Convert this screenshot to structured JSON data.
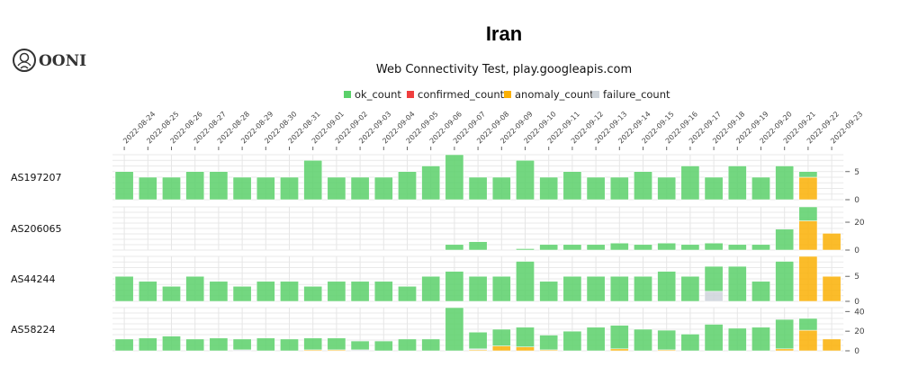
{
  "logo": {
    "text": "OONI"
  },
  "chart_data": {
    "type": "bar",
    "stacked": true,
    "title": "Iran",
    "subtitle": "Web Connectivity Test, play.googleapis.com",
    "legend": {
      "placement": "top",
      "entries": [
        {
          "key": "ok",
          "label": "ok_count",
          "color": "#5ad06a"
        },
        {
          "key": "confirmed",
          "label": "confirmed_count",
          "color": "#f03e3e"
        },
        {
          "key": "anomaly",
          "label": "anomaly_count",
          "color": "#fab005"
        },
        {
          "key": "failure",
          "label": "failure_count",
          "color": "#ced4da"
        }
      ]
    },
    "categories": [
      "2022-08-24",
      "2022-08-25",
      "2022-08-26",
      "2022-08-27",
      "2022-08-28",
      "2022-08-29",
      "2022-08-30",
      "2022-08-31",
      "2022-09-01",
      "2022-09-02",
      "2022-09-03",
      "2022-09-04",
      "2022-09-05",
      "2022-09-06",
      "2022-09-07",
      "2022-09-08",
      "2022-09-09",
      "2022-09-10",
      "2022-09-11",
      "2022-09-12",
      "2022-09-13",
      "2022-09-14",
      "2022-09-15",
      "2022-09-16",
      "2022-09-17",
      "2022-09-18",
      "2022-09-19",
      "2022-09-20",
      "2022-09-21",
      "2022-09-22",
      "2022-09-23"
    ],
    "grid": true,
    "panels": [
      {
        "label": "AS197207",
        "ylim": [
          0,
          8
        ],
        "yticks": [
          0,
          5
        ],
        "ok": [
          5,
          4,
          4,
          5,
          5,
          4,
          4,
          4,
          7,
          4,
          4,
          4,
          5,
          6,
          8,
          4,
          4,
          7,
          4,
          5,
          4,
          4,
          5,
          4,
          6,
          4,
          6,
          4,
          6,
          1,
          0
        ],
        "anomaly": [
          0,
          0,
          0,
          0,
          0,
          0,
          0,
          0,
          0,
          0,
          0,
          0,
          0,
          0,
          0,
          0,
          0,
          0,
          0,
          0,
          0,
          0,
          0,
          0,
          0,
          0,
          0,
          0,
          0,
          4,
          0
        ],
        "failure": [
          0,
          0,
          0,
          0,
          0,
          0,
          0,
          0,
          0,
          0,
          0,
          0,
          0,
          0,
          0,
          0,
          0,
          0,
          0,
          0,
          0,
          0,
          0,
          0,
          0,
          0,
          0,
          0,
          0,
          0,
          0
        ],
        "confirmed": [
          0,
          0,
          0,
          0,
          0,
          0,
          0,
          0,
          0,
          0,
          0,
          0,
          0,
          0,
          0,
          0,
          0,
          0,
          0,
          0,
          0,
          0,
          0,
          0,
          0,
          0,
          0,
          0,
          0,
          0,
          0
        ]
      },
      {
        "label": "AS206065",
        "ylim": [
          0,
          31
        ],
        "yticks": [
          0,
          20
        ],
        "ok": [
          0,
          0,
          0,
          0,
          0,
          0,
          0,
          0,
          0,
          0,
          0,
          0,
          0,
          0,
          4,
          6,
          0,
          1,
          4,
          4,
          4,
          5,
          4,
          5,
          4,
          5,
          4,
          4,
          15,
          10,
          0
        ],
        "anomaly": [
          0,
          0,
          0,
          0,
          0,
          0,
          0,
          0,
          0,
          0,
          0,
          0,
          0,
          0,
          0,
          0,
          0,
          0,
          0,
          0,
          0,
          0,
          0,
          0,
          0,
          0,
          0,
          0,
          0,
          21,
          12
        ],
        "failure": [
          0,
          0,
          0,
          0,
          0,
          0,
          0,
          0,
          0,
          0,
          0,
          0,
          0,
          0,
          0,
          0,
          0,
          0,
          0,
          0,
          0,
          0,
          0,
          0,
          0,
          0,
          0,
          0,
          0,
          0,
          0
        ],
        "confirmed": [
          0,
          0,
          0,
          0,
          0,
          0,
          0,
          0,
          0,
          0,
          0,
          0,
          0,
          0,
          0,
          0,
          0,
          0,
          0,
          0,
          0,
          0,
          0,
          0,
          0,
          0,
          0,
          0,
          0,
          0,
          0
        ]
      },
      {
        "label": "AS44244",
        "ylim": [
          0,
          9
        ],
        "yticks": [
          0,
          5
        ],
        "ok": [
          5,
          4,
          3,
          5,
          4,
          3,
          4,
          4,
          3,
          4,
          4,
          4,
          3,
          5,
          6,
          5,
          5,
          8,
          4,
          5,
          5,
          5,
          5,
          6,
          5,
          5,
          7,
          4,
          8,
          0,
          0
        ],
        "anomaly": [
          0,
          0,
          0,
          0,
          0,
          0,
          0,
          0,
          0,
          0,
          0,
          0,
          0,
          0,
          0,
          0,
          0,
          0,
          0,
          0,
          0,
          0,
          0,
          0,
          0,
          0,
          0,
          0,
          0,
          9,
          5
        ],
        "failure": [
          0,
          0,
          0,
          0,
          0,
          0,
          0,
          0,
          0,
          0,
          0,
          0,
          0,
          0,
          0,
          0,
          0,
          0,
          0,
          0,
          0,
          0,
          0,
          0,
          0,
          2,
          0,
          0,
          0,
          0,
          0
        ],
        "confirmed": [
          0,
          0,
          0,
          0,
          0,
          0,
          0,
          0,
          0,
          0,
          0,
          0,
          0,
          0,
          0,
          0,
          0,
          0,
          0,
          0,
          0,
          0,
          0,
          0,
          0,
          0,
          0,
          0,
          0,
          0,
          0
        ]
      },
      {
        "label": "AS58224",
        "ylim": [
          0,
          44
        ],
        "yticks": [
          0,
          20,
          40
        ],
        "ok": [
          12,
          13,
          15,
          12,
          13,
          11,
          13,
          12,
          12,
          12,
          9,
          10,
          12,
          12,
          44,
          17,
          17,
          20,
          15,
          20,
          24,
          24,
          22,
          20,
          17,
          27,
          23,
          24,
          30,
          12,
          0
        ],
        "anomaly": [
          0,
          0,
          0,
          0,
          0,
          0,
          0,
          0,
          1,
          1,
          0,
          0,
          0,
          0,
          0,
          1,
          5,
          4,
          1,
          0,
          0,
          2,
          0,
          1,
          0,
          0,
          0,
          0,
          2,
          21,
          12
        ],
        "failure": [
          0,
          0,
          0,
          0,
          0,
          1,
          0,
          0,
          0,
          0,
          1,
          0,
          0,
          0,
          0,
          1,
          0,
          0,
          0,
          0,
          0,
          0,
          0,
          0,
          0,
          0,
          0,
          0,
          0,
          0,
          0
        ],
        "confirmed": [
          0,
          0,
          0,
          0,
          0,
          0,
          0,
          0,
          0,
          0,
          0,
          0,
          0,
          0,
          0,
          0,
          0,
          0,
          0,
          0,
          0,
          0,
          0,
          0,
          0,
          0,
          0,
          0,
          0,
          0,
          0
        ]
      }
    ]
  }
}
